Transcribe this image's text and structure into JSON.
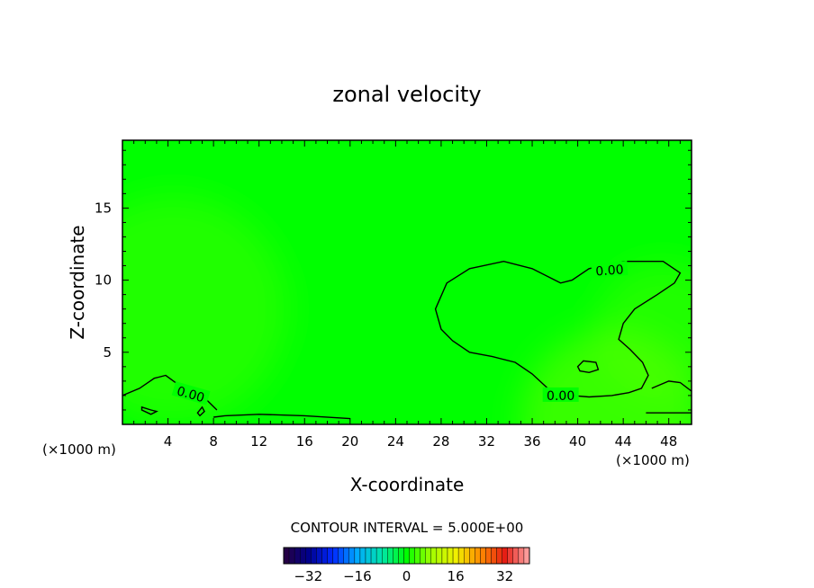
{
  "chart_data": {
    "type": "heatmap",
    "title": "zonal velocity",
    "xlabel": "X-coordinate",
    "ylabel": "Z-coordinate",
    "x_unit": "(×1000 m)",
    "x_unit_right": "(×1000 m)",
    "xlim": [
      0,
      50
    ],
    "ylim": [
      0,
      19.7
    ],
    "x_ticks": [
      4,
      8,
      12,
      16,
      20,
      24,
      28,
      32,
      36,
      40,
      44,
      48
    ],
    "y_ticks": [
      5,
      10,
      15
    ],
    "contour_label": "0.00",
    "contour_interval_text": "CONTOUR INTERVAL = 5.000E+00",
    "colorbar": {
      "range": [
        -40,
        40
      ],
      "ticks": [
        -32,
        -16,
        0,
        16,
        32
      ]
    },
    "field_background_color": "#00ff00",
    "zero_contours": [
      {
        "closed": true,
        "points": [
          [
            27.5,
            8
          ],
          [
            28.5,
            9.8
          ],
          [
            30.5,
            10.8
          ],
          [
            33.5,
            11.3
          ],
          [
            36,
            10.8
          ],
          [
            38.5,
            9.8
          ],
          [
            39.5,
            10
          ],
          [
            41,
            10.8
          ],
          [
            44,
            11.3
          ],
          [
            47.5,
            11.3
          ],
          [
            49,
            10.5
          ],
          [
            48.5,
            9.8
          ],
          [
            47,
            9
          ],
          [
            45,
            8
          ],
          [
            44,
            7
          ],
          [
            43.6,
            5.9
          ],
          [
            44.6,
            5.2
          ],
          [
            45.7,
            4.3
          ],
          [
            46.2,
            3.4
          ],
          [
            45.6,
            2.5
          ],
          [
            44.5,
            2.2
          ],
          [
            43,
            2
          ],
          [
            41,
            1.9
          ],
          [
            39.5,
            2
          ],
          [
            37.5,
            2.4
          ],
          [
            36,
            3.5
          ],
          [
            34.5,
            4.3
          ],
          [
            32.5,
            4.7
          ],
          [
            30.5,
            5
          ],
          [
            29,
            5.8
          ],
          [
            28,
            6.6
          ],
          [
            27.5,
            8
          ]
        ]
      },
      {
        "closed": false,
        "points": [
          [
            0,
            2
          ],
          [
            1.5,
            2.5
          ],
          [
            2.8,
            3.2
          ],
          [
            3.8,
            3.4
          ],
          [
            5,
            2.7
          ],
          [
            7,
            2
          ],
          [
            8.3,
            1
          ]
        ]
      },
      {
        "closed": false,
        "points": [
          [
            8,
            0.5
          ],
          [
            9,
            0.6
          ],
          [
            12,
            0.7
          ],
          [
            16,
            0.6
          ],
          [
            20,
            0.4
          ]
        ]
      },
      {
        "closed": false,
        "points": [
          [
            46,
            0.8
          ],
          [
            47,
            0.8
          ],
          [
            50,
            0.8
          ]
        ]
      },
      {
        "closed": false,
        "points": [
          [
            46.5,
            2.5
          ],
          [
            48,
            3
          ],
          [
            49,
            2.9
          ],
          [
            50,
            2.3
          ]
        ]
      },
      {
        "closed": true,
        "points": [
          [
            40,
            4
          ],
          [
            40.5,
            4.4
          ],
          [
            41.6,
            4.3
          ],
          [
            41.8,
            3.8
          ],
          [
            41,
            3.6
          ],
          [
            40.2,
            3.7
          ],
          [
            40,
            4
          ]
        ]
      },
      {
        "closed": true,
        "points": [
          [
            1.7,
            1.2
          ],
          [
            2.5,
            1
          ],
          [
            3,
            0.9
          ],
          [
            2.5,
            0.7
          ],
          [
            1.7,
            1
          ],
          [
            1.7,
            1.2
          ]
        ]
      },
      {
        "closed": true,
        "points": [
          [
            6.6,
            0.8
          ],
          [
            7,
            1.2
          ],
          [
            7.2,
            0.9
          ],
          [
            6.8,
            0.6
          ],
          [
            6.6,
            0.8
          ]
        ]
      }
    ],
    "field_blobs": [
      {
        "x": 4.5,
        "y": 8,
        "radius": 10,
        "value": 3
      },
      {
        "x": 47.5,
        "y": 6.5,
        "radius": 6,
        "value": 3
      },
      {
        "x": 43,
        "y": 0.3,
        "radius": 8,
        "value": 5
      }
    ]
  }
}
